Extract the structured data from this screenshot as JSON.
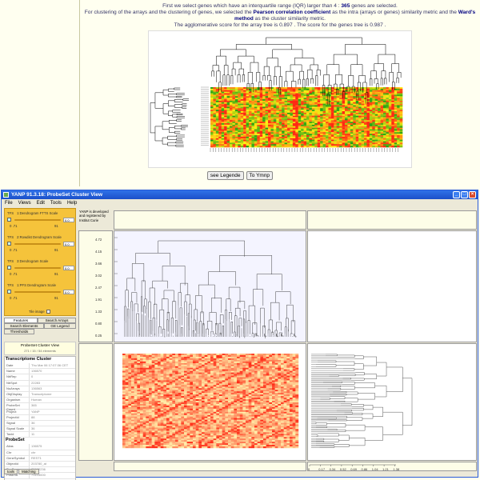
{
  "web": {
    "line1": "First we select genes which have an interquartile range (IQR) larger than 4 :",
    "ngenes": "365",
    "line1b": "genes are selected.",
    "line2a": "For clustering of the arrays and the clustering of genes, we selected the",
    "metric": "Pearson correlation coefficient",
    "line2b": "as the intra (arrays or genes) similarity metric and the",
    "method": "Ward's method",
    "line2c": "as the cluster similarity metric.",
    "line3": "The agglomerative score for the array tree is 0.897 . The score for the genes tree is 0.987 .",
    "btn_legend": "see Legende",
    "btn_ymp": "To Ymnp"
  },
  "window": {
    "title": "YANP 91.3.18: ProbeSet Cluster View",
    "menus": [
      "File",
      "Views",
      "Edit",
      "Tools",
      "Help"
    ],
    "btn_min": "_",
    "btn_max": "□",
    "btn_close": "×"
  },
  "sliders": [
    {
      "title": "1:Dendrogram FTTS Scale",
      "value": "0.0",
      "min": "0 .71",
      "max": "91"
    },
    {
      "title": "2:Rowdist Dendrogram Scale",
      "value": "0.0",
      "min": "0 .71",
      "max": "91"
    },
    {
      "title": "3:Dendrogram Scale",
      "value": "0.0",
      "min": "0 .71",
      "max": "91"
    },
    {
      "title": "1:PFS Dendrogram Scale",
      "value": "0.0",
      "min": "0 .71",
      "max": "91"
    }
  ],
  "slider_tile": "TFS",
  "tile_image_label": "Tile image",
  "tabs": {
    "features": "Features",
    "search_arrays": "Search Arrays",
    "search_elements": "Search Elements",
    "legend": "GE Legend",
    "thresholds": "Thresholds"
  },
  "pcv": {
    "title": "ProbeSet Cluster View",
    "sub": "271 / 15 / 54 elements"
  },
  "note": "YANP is developed and registered by Institut Curie",
  "tx_cluster": {
    "header": "Transcriptome Cluster",
    "rows": [
      [
        "Date",
        "Thu Mar 06 17:07:36 CET"
      ],
      [
        "Name",
        "136570"
      ],
      [
        "NbRep",
        "0"
      ],
      [
        "NbSpot",
        "22283"
      ],
      [
        "NuArrays",
        "136563"
      ],
      [
        "ObjDisplay",
        "Transcriptome"
      ],
      [
        "Organism",
        "Human"
      ],
      [
        "ProbeSet Count",
        "365"
      ],
      [
        "Project",
        "YANP"
      ],
      [
        "ProjectId",
        "88"
      ],
      [
        "Signal",
        "36"
      ],
      [
        "Signal Scale",
        "36"
      ],
      [
        "Taxid",
        "11"
      ]
    ]
  },
  "probeset": {
    "header": "ProbeSet",
    "rows": [
      [
        "Alias",
        "136575"
      ],
      [
        "Chr",
        "chr"
      ],
      [
        "GeneSymbol",
        "REST1"
      ],
      [
        "ObjectId",
        "203780_at"
      ],
      [
        "PosBegin",
        "73082236"
      ],
      [
        "PosEnd",
        "73103000"
      ]
    ]
  },
  "bottom_tabs": [
    "tools",
    "Matching"
  ],
  "axis_y": [
    "4.72",
    "4.15",
    "3.66",
    "3.02",
    "2.47",
    "1.91",
    "1.33",
    "0.80",
    "0.25"
  ],
  "axis_x": [
    "0",
    "0.17",
    "0.34",
    "0.52",
    "0.69",
    "0.86",
    "1.04",
    "1.21",
    "1.38"
  ],
  "colors": {
    "high": "#ff2a0a",
    "low": "#17b52a",
    "mid": "#ffee00",
    "orange": "#f5c33b",
    "title_blue": "#2f72e8"
  }
}
